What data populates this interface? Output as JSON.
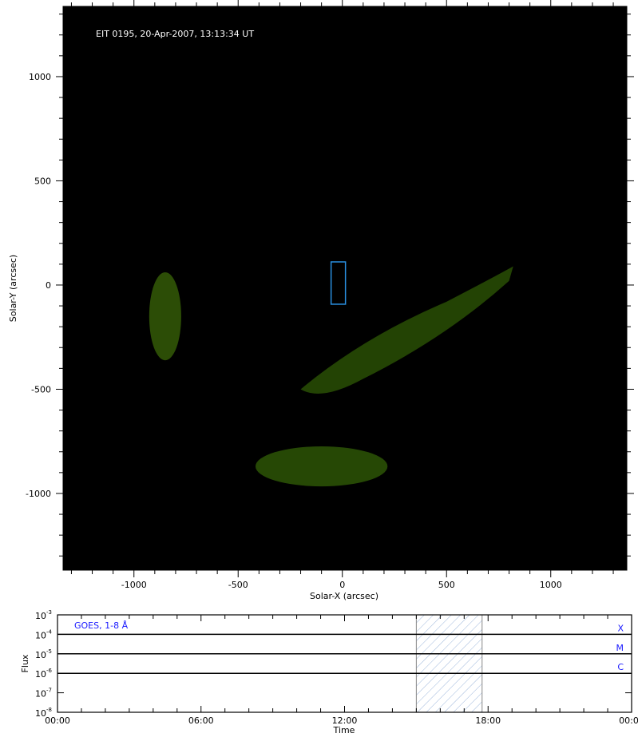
{
  "chart_data": [
    {
      "type": "image",
      "title": "EIT 0195, 20-Apr-2007, 13:13:34 UT",
      "xlabel": "Solar-X (arcsec)",
      "ylabel": "Solar-Y (arcsec)",
      "xlim": [
        -1340,
        1365
      ],
      "ylim": [
        -1368,
        1337
      ],
      "xticks": [
        -1000,
        -500,
        0,
        500,
        1000
      ],
      "yticks": [
        1000,
        500,
        0,
        -500,
        -1000
      ],
      "xtick_labels": [
        "-1000",
        "-500",
        "0",
        "500",
        "1000"
      ],
      "ytick_labels": [
        "1000",
        "500",
        "0",
        "-500",
        "-1000"
      ],
      "solar_radius_arcsec": 960,
      "colormap_color": "#9fc61a",
      "roi_box": {
        "x": [
          -54,
          15
        ],
        "y": [
          -92,
          111
        ],
        "color": "#2a8fe0"
      }
    },
    {
      "type": "line",
      "legend": "GOES, 1-8 Å",
      "xlabel": "Time",
      "ylabel": "Flux",
      "yscale": "log",
      "ylim": [
        1e-08,
        0.001
      ],
      "ytick_labels": [
        {
          "base": "10",
          "exp": "-3"
        },
        {
          "base": "10",
          "exp": "-4"
        },
        {
          "base": "10",
          "exp": "-5"
        },
        {
          "base": "10",
          "exp": "-6"
        },
        {
          "base": "10",
          "exp": "-7"
        },
        {
          "base": "10",
          "exp": "-8"
        }
      ],
      "xtick_labels": [
        "00:00",
        "06:00",
        "12:00",
        "18:00",
        "00:00"
      ],
      "xlim_hours": [
        0,
        24
      ],
      "flare_class_levels": [
        {
          "label": "X",
          "value": 0.0001
        },
        {
          "label": "M",
          "value": 1e-05
        },
        {
          "label": "C",
          "value": 1e-06
        }
      ],
      "shaded_interval_hours": [
        15.0,
        17.75
      ],
      "series": [],
      "label_color": "#1a1aff"
    }
  ]
}
